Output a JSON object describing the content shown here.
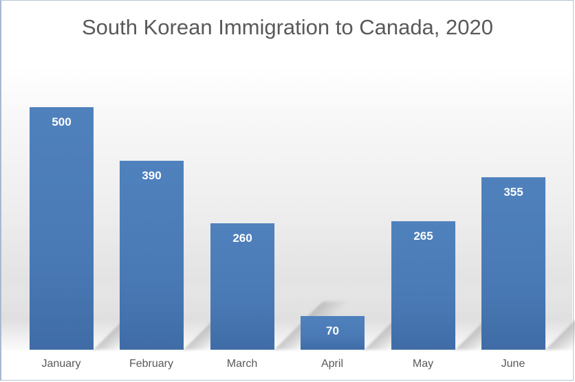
{
  "chart_data": {
    "type": "bar",
    "title": "South Korean Immigration to Canada, 2020",
    "categories": [
      "January",
      "February",
      "March",
      "April",
      "May",
      "June"
    ],
    "values": [
      500,
      390,
      260,
      70,
      265,
      355
    ],
    "xlabel": "",
    "ylabel": "",
    "ylim": [
      0,
      500
    ],
    "grid": false,
    "legend": null,
    "data_labels": [
      "500",
      "390",
      "260",
      "70",
      "265",
      "355"
    ],
    "bar_color": "#4f81bd",
    "data_label_color": "#ffffff"
  }
}
